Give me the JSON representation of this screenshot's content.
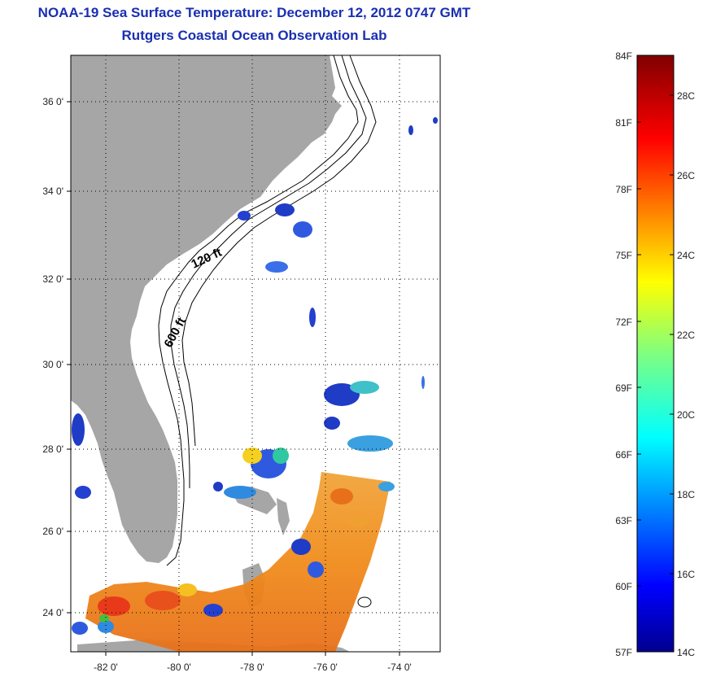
{
  "title": {
    "line1": "NOAA-19 Sea Surface Temperature:  December 12, 2012 0747 GMT",
    "line2": "Rutgers Coastal Ocean Observation Lab"
  },
  "map": {
    "lat_ticks": [
      "36 0'",
      "34 0'",
      "32 0'",
      "30 0'",
      "28 0'",
      "26 0'",
      "24 0'"
    ],
    "lon_ticks": [
      "-82 0'",
      "-80 0'",
      "-78 0'",
      "-76 0'",
      "-74 0'"
    ],
    "contour_labels": [
      "120 ft",
      "600 ft"
    ],
    "colors": {
      "land": "#a6a6a6",
      "ocean": "#ffffff",
      "contour": "#000000"
    }
  },
  "colorbar": {
    "f_labels": [
      "84F",
      "81F",
      "78F",
      "75F",
      "72F",
      "69F",
      "66F",
      "63F",
      "60F",
      "57F"
    ],
    "c_labels": [
      "28C",
      "26C",
      "24C",
      "22C",
      "20C",
      "18C",
      "16C",
      "14C"
    ]
  }
}
